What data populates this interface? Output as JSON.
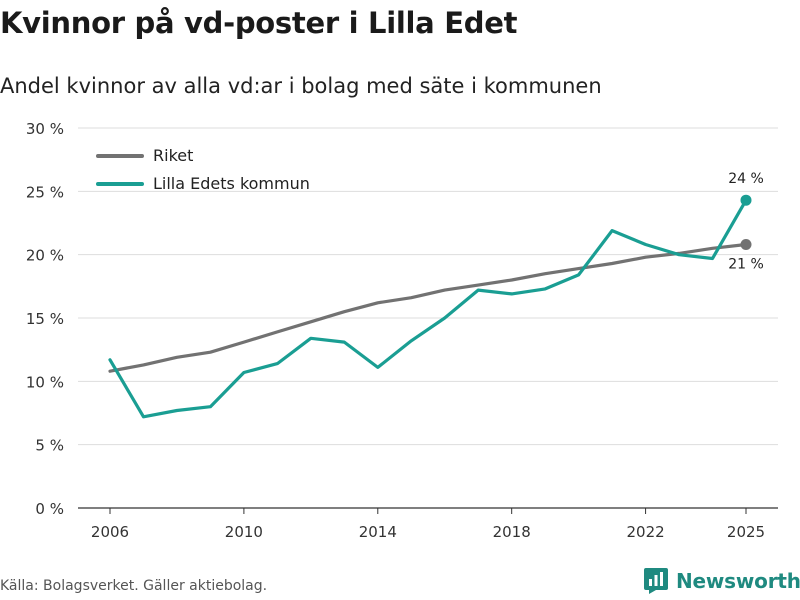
{
  "header": {
    "title": "Kvinnor på vd-poster i Lilla Edet",
    "subtitle": "Andel kvinnor av alla vd:ar i bolag med säte i kommunen"
  },
  "chart_data": {
    "type": "line",
    "x": [
      2006,
      2007,
      2008,
      2009,
      2010,
      2011,
      2012,
      2013,
      2014,
      2015,
      2016,
      2017,
      2018,
      2019,
      2020,
      2021,
      2022,
      2023,
      2024,
      2025
    ],
    "series": [
      {
        "name": "Riket",
        "color": "#727272",
        "values": [
          10.8,
          11.3,
          11.9,
          12.3,
          13.1,
          13.9,
          14.7,
          15.5,
          16.2,
          16.6,
          17.2,
          17.6,
          18.0,
          18.5,
          18.9,
          19.3,
          19.8,
          20.1,
          20.5,
          20.8
        ],
        "end_label": "21 %"
      },
      {
        "name": "Lilla Edets kommun",
        "color": "#1a9e93",
        "values": [
          11.7,
          7.2,
          7.7,
          8.0,
          10.7,
          11.4,
          13.4,
          13.1,
          11.1,
          13.2,
          15.0,
          17.2,
          16.9,
          17.3,
          18.4,
          21.9,
          20.8,
          20.0,
          19.7,
          24.3
        ],
        "end_label": "24 %"
      }
    ],
    "x_ticks": [
      "2006",
      "2010",
      "2014",
      "2018",
      "2022",
      "2025"
    ],
    "y_ticks": [
      "0 %",
      "5 %",
      "10 %",
      "15 %",
      "20 %",
      "25 %",
      "30 %"
    ],
    "ylim": [
      0,
      30
    ],
    "xlim": [
      2006,
      2025
    ],
    "legend_position": "top-left",
    "grid": true
  },
  "footer": {
    "source": "Källa: Bolagsverket. Gäller aktiebolag.",
    "brand": "Newsworthy",
    "brand_color": "#1f8a80"
  }
}
